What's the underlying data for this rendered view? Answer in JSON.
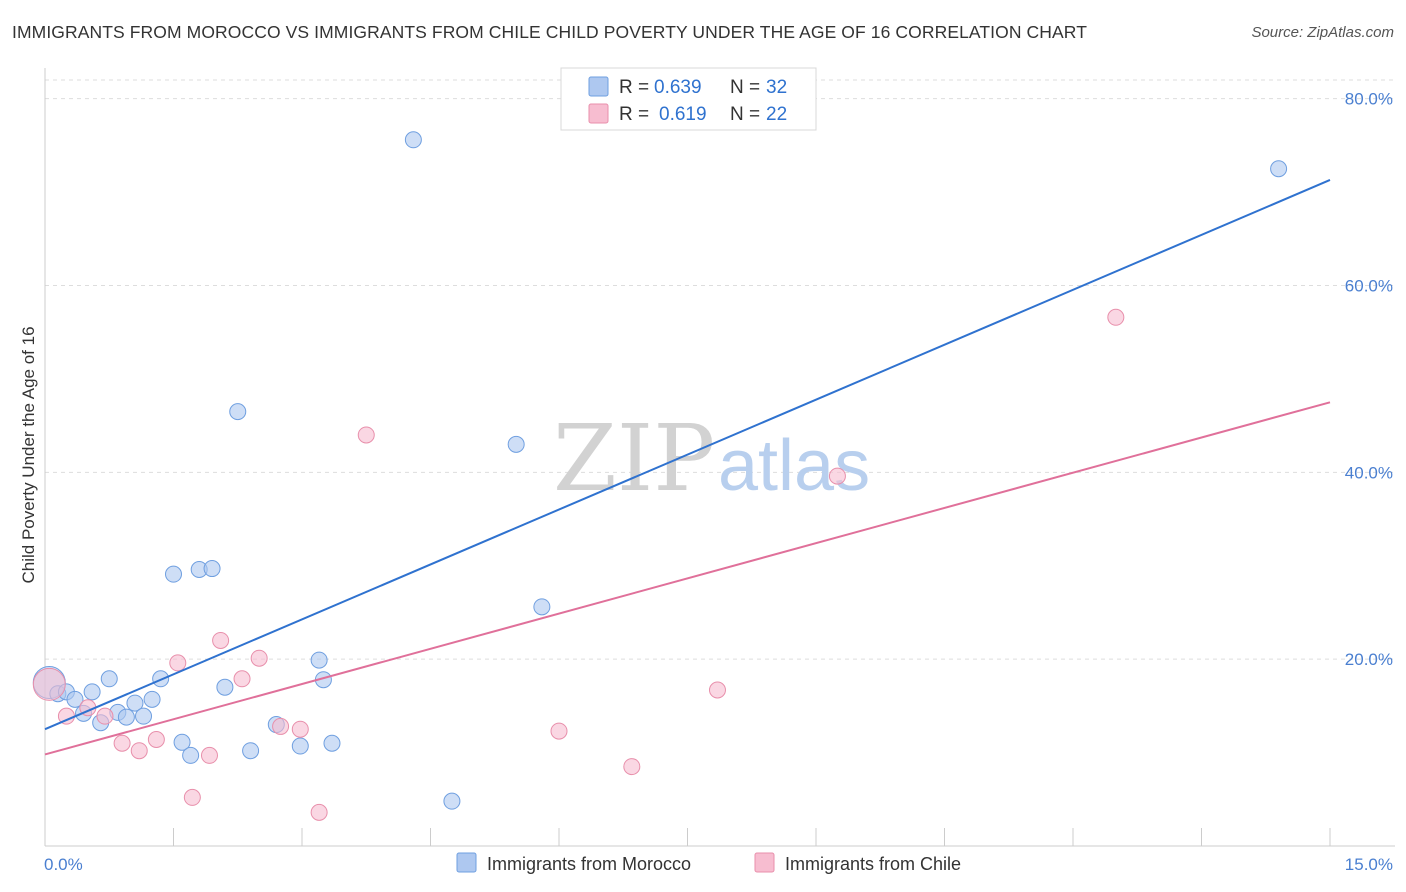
{
  "title": "IMMIGRANTS FROM MOROCCO VS IMMIGRANTS FROM CHILE CHILD POVERTY UNDER THE AGE OF 16 CORRELATION CHART",
  "source": "Source: ZipAtlas.com",
  "watermark": {
    "zip": "ZIP",
    "atlas": "atlas"
  },
  "colors": {
    "blue_fill": "#aec8f0",
    "blue_stroke": "#6f9fe0",
    "blue_line": "#2f72cf",
    "pink_fill": "#f7bdd0",
    "pink_stroke": "#e88fab",
    "pink_line": "#e0709a",
    "tick_text": "#4a7fd0",
    "grid": "#dddddd"
  },
  "legend": {
    "rows": [
      {
        "r_label": "R =",
        "r_value": "0.639",
        "n_label": "N =",
        "n_value": "32",
        "series": "blue"
      },
      {
        "r_label": "R =",
        "r_value": "0.619",
        "n_label": "N =",
        "n_value": "22",
        "series": "pink"
      }
    ]
  },
  "chart_data": {
    "type": "scatter",
    "title": "IMMIGRANTS FROM MOROCCO VS IMMIGRANTS FROM CHILE CHILD POVERTY UNDER THE AGE OF 16 CORRELATION CHART",
    "xlabel": "",
    "ylabel": "Child Poverty Under the Age of 16",
    "xlim": [
      0,
      15
    ],
    "ylim": [
      0,
      82
    ],
    "x_tick_labels": [
      {
        "value": 0,
        "label": "0.0%"
      },
      {
        "value": 15,
        "label": "15.0%"
      }
    ],
    "y_tick_labels": [
      {
        "value": 20,
        "label": "20.0%"
      },
      {
        "value": 40,
        "label": "40.0%"
      },
      {
        "value": 60,
        "label": "60.0%"
      },
      {
        "value": 80,
        "label": "80.0%"
      }
    ],
    "x_minor_ticks": [
      0,
      1.5,
      3,
      4.5,
      6,
      7.5,
      9,
      10.5,
      12,
      13.5,
      15
    ],
    "grid": true,
    "legend_position": "top-center",
    "series": [
      {
        "name": "Immigrants from Morocco",
        "color": "blue",
        "R": 0.639,
        "N": 32,
        "trendline": {
          "x": [
            0,
            15
          ],
          "y": [
            12.5,
            71.3
          ]
        },
        "points": [
          {
            "x": 0.05,
            "y": 17.5,
            "big": true
          },
          {
            "x": 0.15,
            "y": 16.3
          },
          {
            "x": 0.25,
            "y": 16.5
          },
          {
            "x": 0.35,
            "y": 15.7
          },
          {
            "x": 0.45,
            "y": 14.2
          },
          {
            "x": 0.55,
            "y": 16.5
          },
          {
            "x": 0.65,
            "y": 13.2
          },
          {
            "x": 0.75,
            "y": 17.9
          },
          {
            "x": 0.85,
            "y": 14.3
          },
          {
            "x": 0.95,
            "y": 13.8
          },
          {
            "x": 1.05,
            "y": 15.3
          },
          {
            "x": 1.15,
            "y": 13.9
          },
          {
            "x": 1.25,
            "y": 15.7
          },
          {
            "x": 1.35,
            "y": 17.9
          },
          {
            "x": 1.5,
            "y": 29.1
          },
          {
            "x": 1.6,
            "y": 11.1
          },
          {
            "x": 1.7,
            "y": 9.7
          },
          {
            "x": 1.8,
            "y": 29.6
          },
          {
            "x": 1.95,
            "y": 29.7
          },
          {
            "x": 2.1,
            "y": 17.0
          },
          {
            "x": 2.25,
            "y": 46.5
          },
          {
            "x": 2.4,
            "y": 10.2
          },
          {
            "x": 2.7,
            "y": 13.0
          },
          {
            "x": 2.98,
            "y": 10.7
          },
          {
            "x": 3.2,
            "y": 19.9
          },
          {
            "x": 3.25,
            "y": 17.8
          },
          {
            "x": 3.35,
            "y": 11.0
          },
          {
            "x": 4.3,
            "y": 75.6
          },
          {
            "x": 4.75,
            "y": 4.8
          },
          {
            "x": 5.5,
            "y": 43.0
          },
          {
            "x": 5.8,
            "y": 25.6
          },
          {
            "x": 14.4,
            "y": 72.5
          }
        ]
      },
      {
        "name": "Immigrants from Chile",
        "color": "pink",
        "R": 0.619,
        "N": 22,
        "trendline": {
          "x": [
            0,
            15
          ],
          "y": [
            9.8,
            47.5
          ]
        },
        "points": [
          {
            "x": 0.05,
            "y": 17.3,
            "big": true
          },
          {
            "x": 0.25,
            "y": 13.9
          },
          {
            "x": 0.5,
            "y": 14.8
          },
          {
            "x": 0.7,
            "y": 13.9
          },
          {
            "x": 0.9,
            "y": 11.0
          },
          {
            "x": 1.1,
            "y": 10.2
          },
          {
            "x": 1.3,
            "y": 11.4
          },
          {
            "x": 1.55,
            "y": 19.6
          },
          {
            "x": 1.72,
            "y": 5.2
          },
          {
            "x": 1.92,
            "y": 9.7
          },
          {
            "x": 2.05,
            "y": 22.0
          },
          {
            "x": 2.3,
            "y": 17.9
          },
          {
            "x": 2.5,
            "y": 20.1
          },
          {
            "x": 2.75,
            "y": 12.8
          },
          {
            "x": 2.98,
            "y": 12.5
          },
          {
            "x": 3.2,
            "y": 3.6
          },
          {
            "x": 3.75,
            "y": 44.0
          },
          {
            "x": 6.0,
            "y": 12.3
          },
          {
            "x": 6.85,
            "y": 8.5
          },
          {
            "x": 7.85,
            "y": 16.7
          },
          {
            "x": 9.25,
            "y": 39.6
          },
          {
            "x": 12.5,
            "y": 56.6
          }
        ]
      }
    ]
  },
  "bottom_legend": {
    "items": [
      {
        "label": "Immigrants from Morocco",
        "color": "blue"
      },
      {
        "label": "Immigrants from Chile",
        "color": "pink"
      }
    ]
  }
}
